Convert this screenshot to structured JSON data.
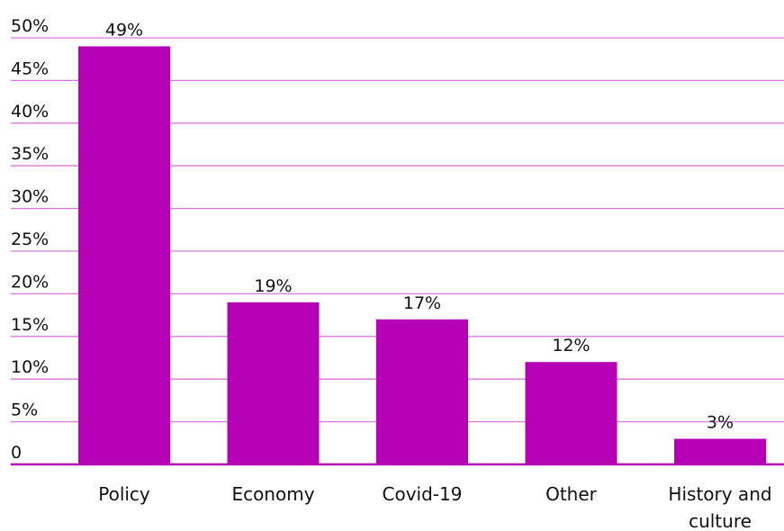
{
  "chart_data": {
    "type": "bar",
    "categories": [
      "Policy",
      "Economy",
      "Covid-19",
      "Other",
      "History and culture"
    ],
    "category_lines": [
      [
        "Policy"
      ],
      [
        "Economy"
      ],
      [
        "Covid-19"
      ],
      [
        "Other"
      ],
      [
        "History and",
        "culture"
      ]
    ],
    "values": [
      49,
      19,
      17,
      12,
      3
    ],
    "data_labels": [
      "49%",
      "19%",
      "17%",
      "12%",
      "3%"
    ],
    "yticks": [
      0,
      5,
      10,
      15,
      20,
      25,
      30,
      35,
      40,
      45,
      50
    ],
    "ytick_labels": [
      "0",
      "5%",
      "10%",
      "15%",
      "20%",
      "25%",
      "30%",
      "35%",
      "40%",
      "45%",
      "50%"
    ],
    "ylim": [
      0,
      50
    ],
    "grid": true,
    "colors": {
      "bar": "#b500b5",
      "grid": "#d77ad7",
      "axis": "#b500b5"
    }
  }
}
